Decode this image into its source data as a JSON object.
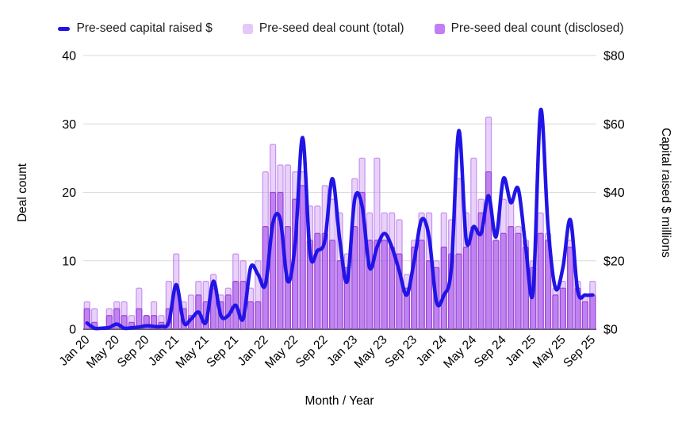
{
  "chart_data": {
    "type": "combo-bar-line",
    "x_title": "Month / Year",
    "y_left": {
      "title": "Deal count",
      "min": 0,
      "max": 40,
      "ticks": [
        0,
        10,
        20,
        30,
        40
      ]
    },
    "y_right": {
      "title": "Capital raised $ millions",
      "min": 0,
      "max": 80,
      "tick_labels": [
        "$0",
        "$20",
        "$40",
        "$60",
        "$80"
      ]
    },
    "tick_every": 4,
    "grid_on": true,
    "legend_position": "top",
    "months": [
      "Jan 20",
      "Feb 20",
      "Mar 20",
      "Apr 20",
      "May 20",
      "Jun 20",
      "Jul 20",
      "Aug 20",
      "Sep 20",
      "Oct 20",
      "Nov 20",
      "Dec 20",
      "Jan 21",
      "Feb 21",
      "Mar 21",
      "Apr 21",
      "May 21",
      "Jun 21",
      "Jul 21",
      "Aug 21",
      "Sep 21",
      "Oct 21",
      "Nov 21",
      "Dec 21",
      "Jan 22",
      "Feb 22",
      "Mar 22",
      "Apr 22",
      "May 22",
      "Jun 22",
      "Jul 22",
      "Aug 22",
      "Sep 22",
      "Oct 22",
      "Nov 22",
      "Dec 22",
      "Jan 23",
      "Feb 23",
      "Mar 23",
      "Apr 23",
      "May 23",
      "Jun 23",
      "Jul 23",
      "Aug 23",
      "Sep 23",
      "Oct 23",
      "Nov 23",
      "Dec 23",
      "Jan 24",
      "Feb 24",
      "Mar 24",
      "Apr 24",
      "May 24",
      "Jun 24",
      "Jul 24",
      "Aug 24",
      "Sep 24",
      "Oct 24",
      "Nov 24",
      "Dec 24",
      "Jan 25",
      "Feb 25",
      "Mar 25",
      "Apr 25",
      "May 25",
      "Jun 25",
      "Jul 25",
      "Aug 25",
      "Sep 25"
    ],
    "series": [
      {
        "name": "Pre-seed capital raised $",
        "type": "line",
        "axis": "right",
        "values": [
          1.8,
          0.3,
          0.3,
          0.5,
          1.5,
          0.3,
          0.4,
          0.6,
          1,
          0.8,
          0.8,
          2,
          13,
          2,
          3,
          5,
          2,
          14,
          4,
          4,
          7,
          3,
          18,
          16,
          13,
          31,
          32,
          14,
          25,
          56,
          22,
          23,
          26,
          44,
          26,
          14,
          38,
          36,
          18,
          24,
          28,
          24,
          17,
          10,
          20,
          32,
          27,
          8,
          10,
          18,
          58,
          26,
          30,
          28,
          39,
          27,
          44,
          37,
          41,
          24,
          11,
          64,
          30,
          12,
          18,
          32,
          11,
          10,
          10
        ]
      },
      {
        "name": "Pre-seed deal count (total)",
        "type": "bar",
        "axis": "left",
        "values": [
          4,
          3,
          0,
          3,
          4,
          4,
          2,
          6,
          2,
          4,
          2,
          7,
          11,
          4,
          5,
          7,
          7,
          8,
          5,
          6,
          11,
          10,
          6,
          10,
          23,
          27,
          24,
          24,
          23,
          23,
          18,
          18,
          21,
          19,
          17,
          11,
          22,
          25,
          17,
          25,
          17,
          17,
          16,
          8,
          13,
          17,
          17,
          10,
          17,
          16,
          22,
          17,
          25,
          19,
          31,
          13,
          19,
          19,
          15,
          13,
          10,
          17,
          14,
          6,
          7,
          13,
          7,
          5,
          7
        ]
      },
      {
        "name": "Pre-seed deal count (disclosed)",
        "type": "bar",
        "axis": "left",
        "values": [
          3,
          1,
          0,
          2,
          3,
          2,
          1,
          3,
          2,
          2,
          1,
          3,
          6,
          3,
          2,
          5,
          4,
          6,
          4,
          5,
          7,
          7,
          4,
          4,
          15,
          20,
          20,
          15,
          19,
          21,
          13,
          14,
          14,
          13,
          10,
          9,
          15,
          20,
          13,
          13,
          13,
          12,
          11,
          6,
          12,
          13,
          10,
          9,
          12,
          11,
          11,
          12,
          15,
          17,
          23,
          13,
          14,
          15,
          14,
          12,
          9,
          14,
          13,
          5,
          6,
          12,
          6,
          4,
          5
        ]
      }
    ],
    "colors": {
      "line": "#2114e6",
      "bar_total_fill": "#c589f0",
      "bar_total_border": "#c084ef",
      "bar_disclosed_fill": "#a74deb",
      "bar_disclosed_border": "#9140d2",
      "legend_total_swatch": "#e4c9f8",
      "legend_disclosed_swatch": "#c27ef2",
      "grid": "#dadada",
      "axis_line": "#5f5f5f",
      "text": "#000000"
    }
  },
  "legend": {
    "items": [
      {
        "label": "Pre-seed capital raised $",
        "swatch": "line-dash"
      },
      {
        "label": "Pre-seed deal count (total)",
        "swatch": "square-light"
      },
      {
        "label": "Pre-seed deal count (disclosed)",
        "swatch": "square-dark"
      }
    ]
  }
}
